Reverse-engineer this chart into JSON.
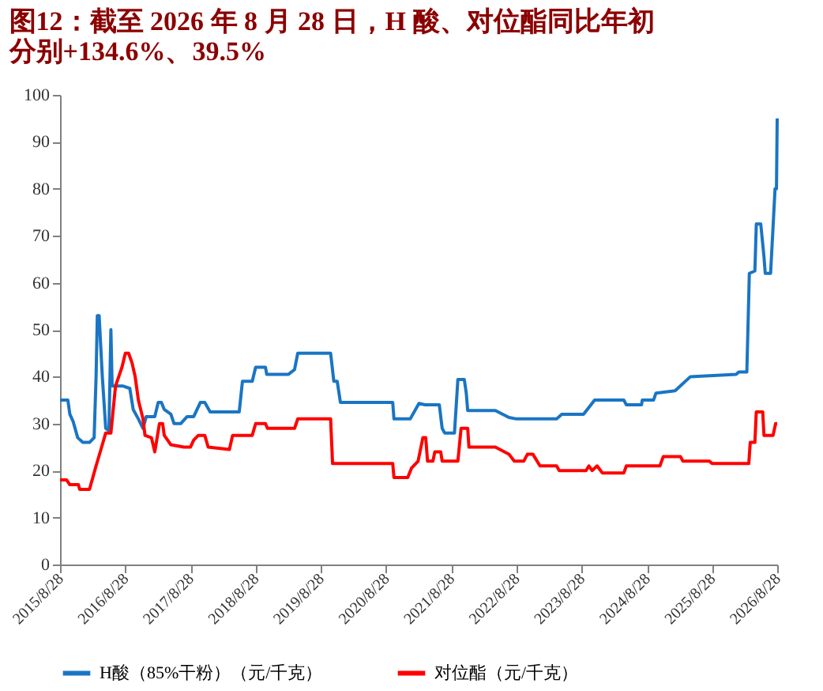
{
  "chart_data": {
    "type": "line",
    "title": "图12：截至 2026 年 8 月 28 日，H 酸、对位酯同比年初分别+134.6%、39.5%",
    "xlim": [
      "2015-08-28",
      "2026-08-28"
    ],
    "xticks": [
      {
        "value": "2015-08-28",
        "label": "2015/8/28"
      },
      {
        "value": "2016-08-28",
        "label": "2016/8/28"
      },
      {
        "value": "2017-08-28",
        "label": "2017/8/28"
      },
      {
        "value": "2018-08-28",
        "label": "2018/8/28"
      },
      {
        "value": "2019-08-28",
        "label": "2019/8/28"
      },
      {
        "value": "2020-08-28",
        "label": "2020/8/28"
      },
      {
        "value": "2021-08-28",
        "label": "2021/8/28"
      },
      {
        "value": "2022-08-28",
        "label": "2022/8/28"
      },
      {
        "value": "2023-08-28",
        "label": "2023/8/28"
      },
      {
        "value": "2024-08-28",
        "label": "2024/8/28"
      },
      {
        "value": "2025-08-28",
        "label": "2025/8/28"
      },
      {
        "value": "2026-08-28",
        "label": "2026/8/28"
      }
    ],
    "ylim": [
      0,
      100
    ],
    "yticks": [
      0,
      10,
      20,
      30,
      40,
      50,
      60,
      70,
      80,
      90,
      100
    ],
    "grid": false,
    "legend": "bottom",
    "marker": "none",
    "line_style": "solid",
    "series": [
      {
        "name": "H酸（85%干粉）（元/千克）",
        "color": "#1a75c4",
        "x": [
          "2015-08-28",
          "2015-10-11",
          "2015-10-22",
          "2015-11-09",
          "2015-12-05",
          "2016-01-03",
          "2016-02-09",
          "2016-03-06",
          "2016-03-17",
          "2016-03-24",
          "2016-04-03",
          "2016-04-21",
          "2016-05-10",
          "2016-05-28",
          "2016-06-08",
          "2016-06-15",
          "2016-08-16",
          "2016-09-22",
          "2016-10-11",
          "2016-11-09",
          "2016-12-05",
          "2016-12-23",
          "2017-02-09",
          "2017-02-28",
          "2017-03-18",
          "2017-04-03",
          "2017-05-10",
          "2017-05-28",
          "2017-07-04",
          "2017-08-09",
          "2017-09-15",
          "2017-10-22",
          "2017-11-16",
          "2017-12-16",
          "2018-05-28",
          "2018-06-15",
          "2018-08-09",
          "2018-08-28",
          "2018-10-22",
          "2018-10-29",
          "2019-02-28",
          "2019-04-03",
          "2019-04-21",
          "2019-10-22",
          "2019-11-09",
          "2019-11-28",
          "2019-12-16",
          "2020-10-04",
          "2020-10-11",
          "2021-01-10",
          "2021-02-28",
          "2021-04-03",
          "2021-06-22",
          "2021-07-08",
          "2021-07-22",
          "2021-09-15",
          "2021-10-04",
          "2021-11-09",
          "2021-11-20",
          "2021-11-28",
          "2022-05-02",
          "2022-07-17",
          "2022-08-28",
          "2023-04-10",
          "2023-05-09",
          "2023-09-08",
          "2023-11-09",
          "2024-04-21",
          "2024-05-05",
          "2024-07-29",
          "2024-08-02",
          "2024-10-04",
          "2024-10-18",
          "2025-02-02",
          "2025-04-29",
          "2026-01-10",
          "2026-01-25",
          "2026-03-11",
          "2026-03-25",
          "2026-04-25",
          "2026-05-03",
          "2026-05-28",
          "2026-06-15",
          "2026-06-22",
          "2026-07-22",
          "2026-08-05",
          "2026-08-16",
          "2026-08-24",
          "2026-08-28"
        ],
        "values": [
          35,
          35,
          32,
          30.5,
          27,
          26,
          26,
          27,
          40,
          53,
          53,
          40,
          29,
          28.5,
          50,
          38,
          38,
          37.5,
          33,
          31,
          29,
          31.5,
          31.5,
          34.5,
          34.5,
          33,
          32,
          30,
          30,
          31.5,
          31.5,
          34.5,
          34.5,
          32.5,
          32.5,
          39,
          39,
          42,
          42,
          40.5,
          40.5,
          41.5,
          45,
          45,
          39,
          39,
          34.5,
          34.5,
          31,
          31,
          34.3,
          34,
          34,
          29,
          28,
          28,
          39.4,
          39.4,
          36.5,
          32.8,
          32.8,
          31.3,
          31,
          31,
          32,
          32,
          35,
          35,
          34,
          34,
          35,
          35,
          36.5,
          37,
          40,
          40.5,
          41,
          41,
          62,
          62.5,
          72.5,
          72.5,
          65.5,
          62,
          62,
          72,
          80,
          80,
          95
        ]
      },
      {
        "name": "对位酯（元/千克）",
        "color": "#ff0000",
        "x": [
          "2015-08-28",
          "2015-10-04",
          "2015-10-22",
          "2015-12-09",
          "2015-12-16",
          "2016-02-09",
          "2016-03-17",
          "2016-04-21",
          "2016-05-10",
          "2016-06-08",
          "2016-07-04",
          "2016-07-22",
          "2016-08-09",
          "2016-08-28",
          "2016-09-15",
          "2016-10-04",
          "2016-10-22",
          "2016-11-09",
          "2016-12-05",
          "2016-12-16",
          "2017-01-21",
          "2017-02-09",
          "2017-03-07",
          "2017-03-25",
          "2017-04-03",
          "2017-05-10",
          "2017-07-22",
          "2017-08-28",
          "2017-09-15",
          "2017-10-11",
          "2017-11-16",
          "2017-12-05",
          "2018-04-03",
          "2018-04-21",
          "2018-08-09",
          "2018-08-28",
          "2018-10-22",
          "2018-11-02",
          "2019-04-03",
          "2019-04-21",
          "2019-10-22",
          "2019-11-02",
          "2020-10-04",
          "2020-10-11",
          "2020-12-27",
          "2021-01-17",
          "2021-02-23",
          "2021-03-22",
          "2021-04-07",
          "2021-04-17",
          "2021-05-17",
          "2021-05-28",
          "2021-06-30",
          "2021-07-08",
          "2021-10-04",
          "2021-10-22",
          "2021-11-28",
          "2021-12-05",
          "2022-05-02",
          "2022-07-17",
          "2022-08-16",
          "2022-10-08",
          "2022-10-29",
          "2022-11-28",
          "2023-01-07",
          "2023-04-10",
          "2023-04-25",
          "2023-09-22",
          "2023-10-08",
          "2023-10-26",
          "2023-11-23",
          "2023-12-22",
          "2024-04-21",
          "2024-05-05",
          "2024-11-09",
          "2024-11-28",
          "2025-03-04",
          "2025-03-18",
          "2025-08-13",
          "2025-08-28",
          "2026-03-22",
          "2026-03-30",
          "2026-04-25",
          "2026-05-03",
          "2026-06-08",
          "2026-06-15",
          "2026-08-05",
          "2026-08-19",
          "2026-08-28"
        ],
        "values": [
          18,
          18,
          17,
          17,
          16,
          16,
          21,
          25.5,
          28,
          28,
          38,
          40,
          42,
          45,
          45,
          43,
          40,
          35,
          31,
          27.5,
          27,
          24,
          30,
          30,
          27.5,
          25.5,
          25,
          25,
          26.5,
          27.5,
          27.5,
          25,
          24.5,
          27.5,
          27.5,
          30,
          30,
          29,
          29,
          31,
          31,
          21.5,
          21.5,
          18.5,
          18.5,
          20.5,
          22,
          27,
          27,
          22,
          22,
          24,
          24,
          22,
          22,
          29,
          29,
          25,
          25,
          23.5,
          22,
          22,
          23.5,
          23.5,
          21,
          21,
          20,
          20,
          21,
          20,
          21,
          19.5,
          19.5,
          21,
          21,
          23,
          23,
          22,
          22,
          21.5,
          21.5,
          26,
          26,
          32.5,
          32.5,
          27.5,
          27.5,
          30,
          30
        ]
      }
    ]
  }
}
